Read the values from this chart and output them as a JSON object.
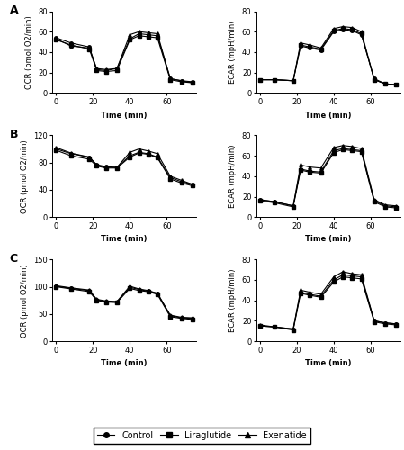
{
  "time_points": [
    0,
    8,
    18,
    22,
    27,
    33,
    40,
    45,
    50,
    55,
    62,
    68,
    74
  ],
  "panel_A_OCR": {
    "control": [
      54,
      49,
      45,
      23,
      22,
      24,
      53,
      58,
      57,
      56,
      14,
      12,
      11
    ],
    "liraglutide": [
      52,
      47,
      43,
      22,
      21,
      22,
      52,
      56,
      55,
      54,
      13,
      11,
      10
    ],
    "exenatide": [
      53,
      46,
      44,
      24,
      23,
      24,
      57,
      60,
      59,
      58,
      14,
      12,
      10
    ]
  },
  "panel_A_ECAR": {
    "control": [
      13,
      13,
      12,
      46,
      44,
      42,
      60,
      62,
      61,
      57,
      14,
      9,
      8
    ],
    "liraglutide": [
      13,
      13,
      12,
      47,
      45,
      43,
      61,
      63,
      62,
      58,
      13,
      9,
      8
    ],
    "exenatide": [
      13,
      13,
      12,
      49,
      47,
      44,
      63,
      65,
      64,
      60,
      13,
      9,
      8
    ]
  },
  "panel_B_OCR": {
    "control": [
      100,
      93,
      88,
      77,
      74,
      73,
      90,
      95,
      93,
      88,
      58,
      52,
      48
    ],
    "liraglutide": [
      98,
      90,
      85,
      75,
      72,
      72,
      88,
      94,
      92,
      87,
      56,
      50,
      46
    ],
    "exenatide": [
      102,
      94,
      88,
      76,
      73,
      73,
      95,
      100,
      97,
      93,
      60,
      54,
      48
    ]
  },
  "panel_B_ECAR": {
    "control": [
      17,
      15,
      11,
      47,
      45,
      44,
      65,
      67,
      66,
      65,
      16,
      11,
      10
    ],
    "liraglutide": [
      16,
      14,
      10,
      46,
      44,
      43,
      63,
      66,
      65,
      64,
      15,
      10,
      9
    ],
    "exenatide": [
      17,
      15,
      11,
      51,
      49,
      48,
      68,
      70,
      69,
      67,
      17,
      12,
      11
    ]
  },
  "panel_C_OCR": {
    "control": [
      101,
      97,
      93,
      76,
      73,
      72,
      99,
      95,
      92,
      88,
      47,
      43,
      42
    ],
    "liraglutide": [
      100,
      96,
      91,
      75,
      72,
      71,
      97,
      93,
      91,
      86,
      45,
      42,
      40
    ],
    "exenatide": [
      102,
      98,
      94,
      77,
      74,
      73,
      101,
      96,
      93,
      88,
      48,
      44,
      43
    ]
  },
  "panel_C_ECAR": {
    "control": [
      15,
      14,
      12,
      48,
      46,
      44,
      60,
      65,
      64,
      63,
      20,
      18,
      17
    ],
    "liraglutide": [
      15,
      14,
      11,
      47,
      45,
      43,
      58,
      63,
      62,
      61,
      19,
      17,
      16
    ],
    "exenatide": [
      16,
      14,
      12,
      50,
      48,
      46,
      63,
      68,
      66,
      65,
      20,
      18,
      17
    ]
  },
  "ocr_ylims": {
    "A": [
      0,
      80
    ],
    "B": [
      0,
      120
    ],
    "C": [
      0,
      150
    ]
  },
  "ecar_ylims": {
    "A": [
      0,
      80
    ],
    "B": [
      0,
      80
    ],
    "C": [
      0,
      80
    ]
  },
  "ocr_yticks": {
    "A": [
      0,
      20,
      40,
      60,
      80
    ],
    "B": [
      0,
      40,
      80,
      120
    ],
    "C": [
      0,
      50,
      100,
      150
    ]
  },
  "ecar_yticks": {
    "A": [
      0,
      20,
      40,
      60,
      80
    ],
    "B": [
      0,
      20,
      40,
      60,
      80
    ],
    "C": [
      0,
      20,
      40,
      60,
      80
    ]
  },
  "xticks": [
    0,
    20,
    40,
    60
  ],
  "xlim": [
    -2,
    76
  ],
  "xlabel": "Time (min)",
  "ocr_ylabel": "OCR (pmol O2/min)",
  "ecar_ylabel": "ECAR (mpH/min)",
  "legend_labels": [
    "Control",
    "Liraglutide",
    "Exenatide"
  ],
  "legend_markers": [
    "o",
    "s",
    "^"
  ],
  "line_color": "black",
  "fontsize_label": 6,
  "fontsize_tick": 6,
  "fontsize_legend": 7,
  "fontsize_panel": 9,
  "lw": 0.8,
  "ms": 2.5
}
